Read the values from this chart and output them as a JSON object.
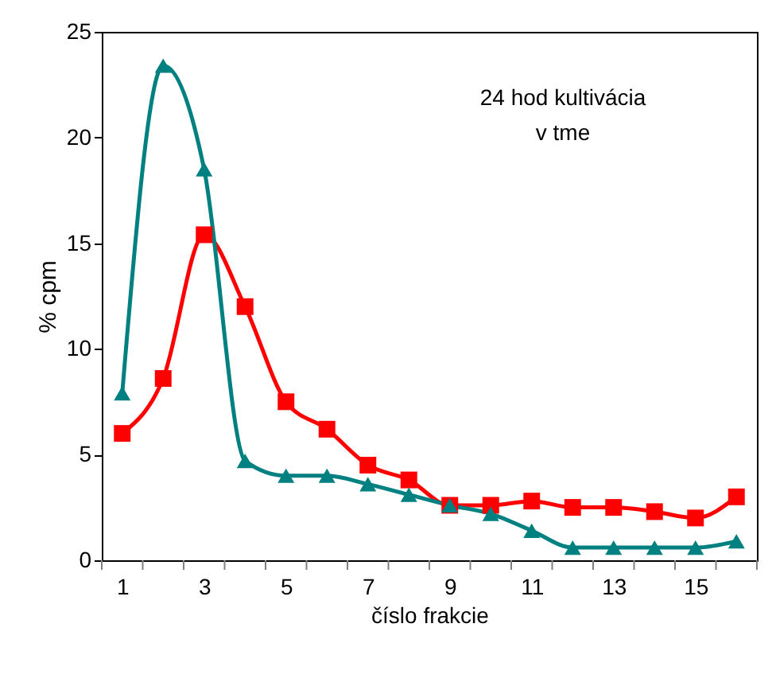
{
  "chart_data": {
    "type": "line",
    "xlabel": "číslo frakcie",
    "ylabel": "% cpm",
    "annotations": [
      "24 hod kultivácia",
      "v tme"
    ],
    "x": [
      1,
      2,
      3,
      4,
      5,
      6,
      7,
      8,
      9,
      10,
      11,
      12,
      13,
      14,
      15,
      16
    ],
    "xlim": [
      0.5,
      16.5
    ],
    "xticks": [
      1,
      3,
      5,
      7,
      9,
      11,
      13,
      15,
      {
        "value": 0.5,
        "label": null
      },
      {
        "value": 1.5,
        "label": null
      },
      {
        "value": 2.5,
        "label": null
      },
      {
        "value": 3.5,
        "label": null
      },
      {
        "value": 4.5,
        "label": null
      },
      {
        "value": 5.5,
        "label": null
      },
      {
        "value": 6.5,
        "label": null
      },
      {
        "value": 7.5,
        "label": null
      },
      {
        "value": 8.5,
        "label": null
      },
      {
        "value": 9.5,
        "label": null
      },
      {
        "value": 10.5,
        "label": null
      },
      {
        "value": 11.5,
        "label": null
      },
      {
        "value": 12.5,
        "label": null
      },
      {
        "value": 13.5,
        "label": null
      },
      {
        "value": 14.5,
        "label": null
      },
      {
        "value": 15.5,
        "label": null
      },
      {
        "value": 16.5,
        "label": null
      }
    ],
    "ylim": [
      0,
      25
    ],
    "yticks": [
      0,
      5,
      10,
      15,
      20,
      25
    ],
    "grid": false,
    "series": [
      {
        "color": "#ff0000",
        "marker": "square",
        "values": [
          6.0,
          8.6,
          15.4,
          12.0,
          7.5,
          6.2,
          4.5,
          3.8,
          2.6,
          2.6,
          2.8,
          2.5,
          2.5,
          2.3,
          2.0,
          3.0
        ]
      },
      {
        "color": "#008080",
        "marker": "triangle",
        "values": [
          7.9,
          23.4,
          18.5,
          4.7,
          4.0,
          4.0,
          3.6,
          3.1,
          2.6,
          2.2,
          1.4,
          0.6,
          0.6,
          0.6,
          0.6,
          0.9
        ]
      }
    ]
  }
}
